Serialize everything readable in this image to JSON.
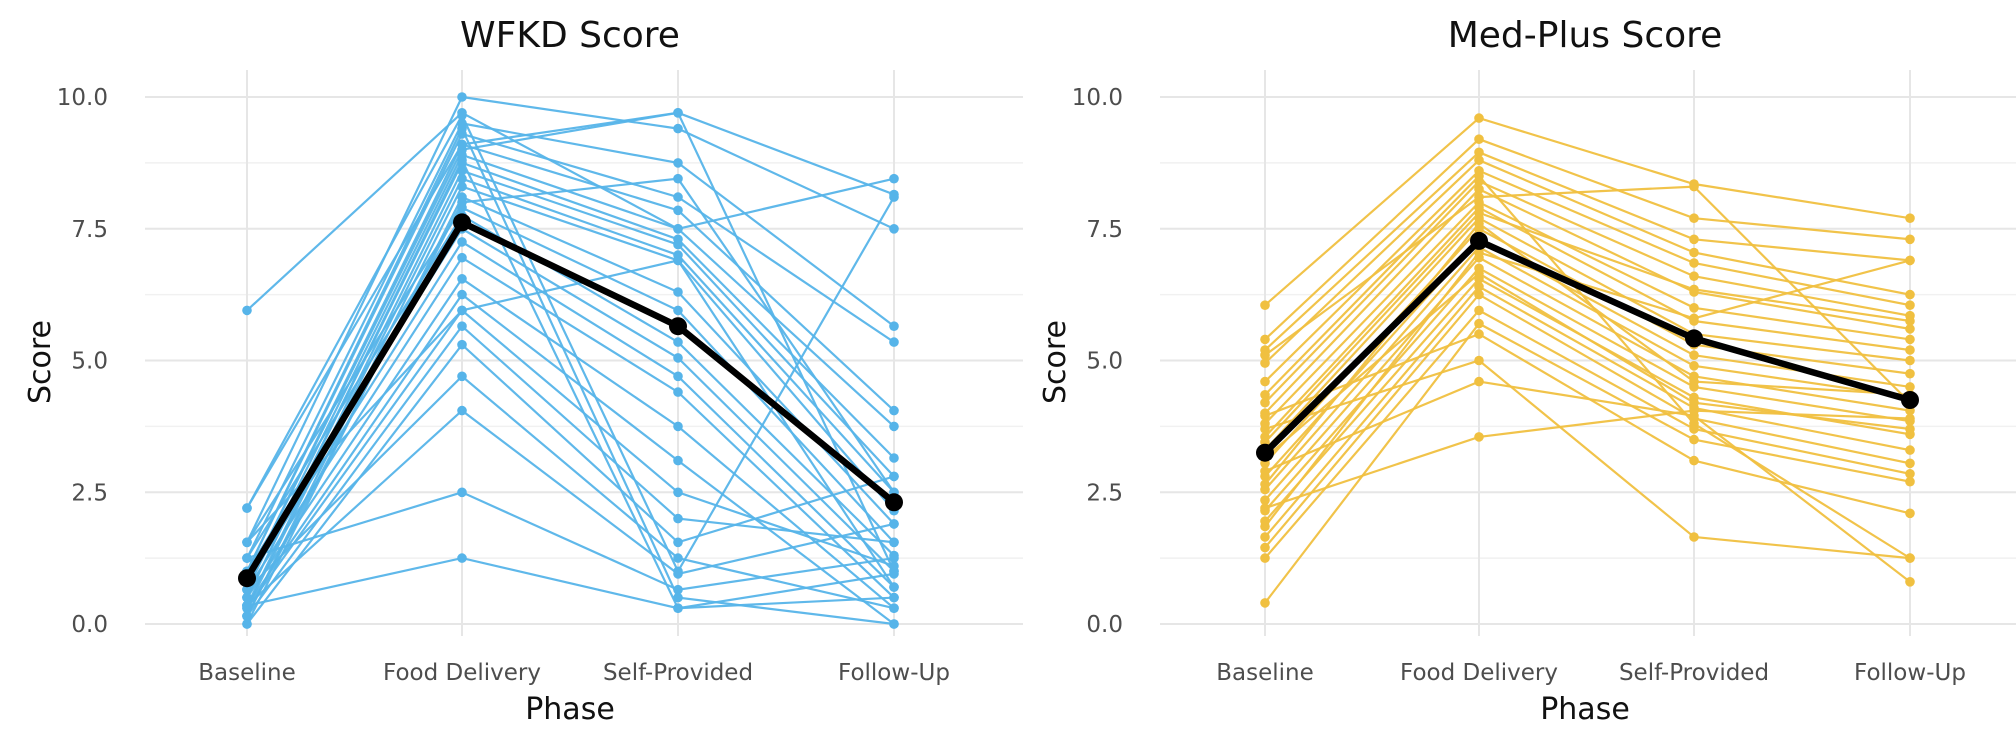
{
  "chart_data": [
    {
      "type": "line",
      "title": "WFKD Score",
      "xlabel": "Phase",
      "ylabel": "Score",
      "ylim": [
        0,
        10
      ],
      "yticks": [
        "0.0",
        "2.5",
        "5.0",
        "7.5",
        "10.0"
      ],
      "categories": [
        "Baseline",
        "Food Delivery",
        "Self-Provided",
        "Follow-Up"
      ],
      "color": "#56B4E9",
      "mean_color": "#000000",
      "mean": [
        0.87,
        7.62,
        5.65,
        2.31
      ],
      "individuals": [
        [
          5.95,
          9.7,
          7.5,
          8.45
        ],
        [
          2.2,
          9.1,
          9.7,
          8.15
        ],
        [
          1.55,
          10.0,
          9.4,
          7.5
        ],
        [
          1.25,
          9.5,
          8.75,
          5.65
        ],
        [
          1.0,
          9.3,
          8.1,
          5.35
        ],
        [
          0.8,
          9.1,
          7.85,
          4.05
        ],
        [
          0.65,
          8.9,
          7.5,
          3.75
        ],
        [
          0.5,
          8.75,
          7.3,
          3.15
        ],
        [
          0.35,
          8.6,
          7.2,
          2.8
        ],
        [
          0.3,
          8.45,
          7.0,
          2.5
        ],
        [
          0.15,
          8.3,
          6.9,
          2.15
        ],
        [
          0.0,
          8.1,
          6.3,
          1.9
        ],
        [
          1.55,
          7.9,
          5.95,
          1.55
        ],
        [
          1.25,
          7.75,
          5.35,
          1.3
        ],
        [
          1.0,
          7.5,
          5.05,
          1.0
        ],
        [
          0.8,
          7.25,
          4.7,
          0.7
        ],
        [
          0.65,
          6.95,
          4.4,
          0.5
        ],
        [
          0.5,
          6.55,
          3.75,
          0.3
        ],
        [
          0.35,
          6.25,
          3.1,
          0.0
        ],
        [
          0.3,
          5.95,
          2.5,
          1.1
        ],
        [
          0.15,
          5.65,
          2.0,
          1.55
        ],
        [
          0.0,
          5.3,
          1.55,
          2.8
        ],
        [
          0.65,
          4.7,
          1.25,
          0.3
        ],
        [
          0.35,
          4.05,
          0.95,
          1.9
        ],
        [
          1.25,
          2.5,
          0.65,
          1.25
        ],
        [
          0.35,
          1.25,
          0.3,
          0.95
        ],
        [
          2.2,
          9.65,
          1.0,
          8.1
        ],
        [
          1.0,
          9.4,
          0.5,
          0.0
        ],
        [
          0.8,
          9.0,
          9.7,
          1.0
        ],
        [
          0.5,
          8.8,
          0.3,
          0.5
        ],
        [
          0.15,
          8.0,
          8.45,
          2.5
        ],
        [
          1.55,
          5.95,
          6.9,
          0.7
        ]
      ]
    },
    {
      "type": "line",
      "title": "Med-Plus Score",
      "xlabel": "Phase",
      "ylabel": "Score",
      "ylim": [
        0,
        10
      ],
      "yticks": [
        "0.0",
        "2.5",
        "5.0",
        "7.5",
        "10.0"
      ],
      "categories": [
        "Baseline",
        "Food Delivery",
        "Self-Provided",
        "Follow-Up"
      ],
      "color": "#F0C040",
      "mean_color": "#000000",
      "mean": [
        3.25,
        7.27,
        5.42,
        4.25
      ],
      "individuals": [
        [
          6.05,
          9.6,
          8.35,
          7.7
        ],
        [
          5.4,
          9.2,
          7.7,
          7.3
        ],
        [
          5.2,
          8.95,
          7.3,
          6.9
        ],
        [
          4.95,
          8.8,
          7.05,
          6.25
        ],
        [
          4.6,
          8.6,
          6.85,
          6.05
        ],
        [
          4.2,
          8.4,
          6.6,
          5.85
        ],
        [
          4.0,
          8.25,
          6.3,
          5.6
        ],
        [
          3.8,
          8.0,
          6.0,
          5.4
        ],
        [
          3.55,
          7.9,
          5.75,
          5.2
        ],
        [
          3.3,
          7.7,
          5.5,
          5.0
        ],
        [
          3.05,
          7.5,
          5.3,
          4.75
        ],
        [
          2.8,
          7.3,
          5.1,
          4.5
        ],
        [
          2.55,
          7.15,
          4.9,
          4.3
        ],
        [
          2.35,
          6.95,
          4.7,
          4.05
        ],
        [
          2.15,
          6.75,
          4.5,
          3.85
        ],
        [
          1.95,
          6.55,
          4.3,
          3.6
        ],
        [
          1.65,
          6.4,
          4.1,
          3.3
        ],
        [
          1.45,
          6.25,
          3.9,
          3.05
        ],
        [
          1.25,
          5.95,
          3.7,
          2.85
        ],
        [
          0.4,
          5.7,
          3.5,
          2.7
        ],
        [
          3.95,
          5.5,
          3.1,
          2.1
        ],
        [
          3.7,
          5.0,
          1.65,
          1.25
        ],
        [
          2.9,
          4.6,
          3.95,
          0.8
        ],
        [
          2.2,
          3.55,
          4.05,
          3.9
        ],
        [
          5.1,
          8.1,
          8.3,
          4.2
        ],
        [
          3.45,
          7.8,
          6.35,
          5.75
        ],
        [
          2.65,
          7.6,
          4.6,
          4.35
        ],
        [
          4.35,
          8.5,
          3.8,
          1.25
        ],
        [
          1.85,
          7.05,
          5.8,
          6.9
        ],
        [
          3.15,
          6.65,
          4.2,
          3.7
        ]
      ]
    }
  ]
}
